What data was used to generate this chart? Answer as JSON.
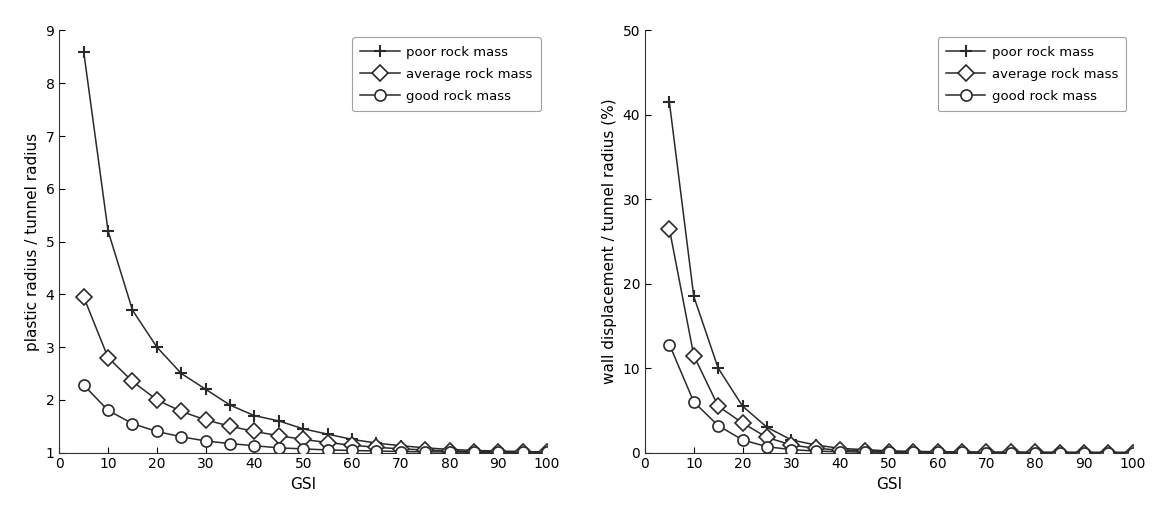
{
  "left_plot": {
    "xlabel": "GSI",
    "ylabel": "plastic radius / tunnel radius",
    "xlim": [
      0,
      100
    ],
    "ylim": [
      1,
      9
    ],
    "yticks": [
      1,
      2,
      3,
      4,
      5,
      6,
      7,
      8,
      9
    ],
    "xticks": [
      0,
      10,
      20,
      30,
      40,
      50,
      60,
      70,
      80,
      90,
      100
    ],
    "poor": {
      "gsi": [
        5,
        10,
        15,
        20,
        25,
        30,
        35,
        40,
        45,
        50,
        55,
        60,
        65,
        70,
        75,
        80,
        85,
        90,
        95,
        100
      ],
      "values": [
        8.6,
        5.2,
        3.7,
        3.0,
        2.5,
        2.2,
        1.9,
        1.7,
        1.6,
        1.45,
        1.35,
        1.25,
        1.18,
        1.13,
        1.09,
        1.06,
        1.04,
        1.03,
        1.02,
        1.01
      ],
      "label": "poor rock mass",
      "marker": "P"
    },
    "average": {
      "gsi": [
        5,
        10,
        15,
        20,
        25,
        30,
        35,
        40,
        45,
        50,
        55,
        60,
        65,
        70,
        75,
        80,
        85,
        90,
        95,
        100
      ],
      "values": [
        3.95,
        2.8,
        2.35,
        2.0,
        1.78,
        1.62,
        1.5,
        1.4,
        1.32,
        1.25,
        1.19,
        1.14,
        1.1,
        1.07,
        1.05,
        1.03,
        1.02,
        1.015,
        1.01,
        1.005
      ],
      "label": "average rock mass",
      "marker": "D"
    },
    "good": {
      "gsi": [
        5,
        10,
        15,
        20,
        25,
        30,
        35,
        40,
        45,
        50,
        55,
        60,
        65,
        70,
        75,
        80,
        85,
        90,
        95,
        100
      ],
      "values": [
        2.28,
        1.8,
        1.55,
        1.4,
        1.3,
        1.22,
        1.17,
        1.13,
        1.09,
        1.07,
        1.05,
        1.04,
        1.03,
        1.02,
        1.015,
        1.01,
        1.008,
        1.005,
        1.003,
        1.002
      ],
      "label": "good rock mass",
      "marker": "o"
    },
    "hline_y": 1.0
  },
  "right_plot": {
    "xlabel": "GSI",
    "ylabel": "wall displacement / tunnel radius (%)",
    "xlim": [
      0,
      100
    ],
    "ylim": [
      0,
      50
    ],
    "yticks": [
      0,
      10,
      20,
      30,
      40,
      50
    ],
    "xticks": [
      0,
      10,
      20,
      30,
      40,
      50,
      60,
      70,
      80,
      90,
      100
    ],
    "poor": {
      "gsi": [
        5,
        10,
        15,
        20,
        25,
        30,
        35,
        40,
        45,
        50,
        55,
        60,
        65,
        70,
        75,
        80,
        85,
        90,
        95,
        100
      ],
      "values": [
        41.5,
        18.5,
        10.0,
        5.5,
        3.0,
        1.5,
        0.9,
        0.5,
        0.35,
        0.2,
        0.15,
        0.1,
        0.08,
        0.05,
        0.04,
        0.03,
        0.02,
        0.01,
        0.01,
        0.005
      ],
      "label": "poor rock mass",
      "marker": "P"
    },
    "average": {
      "gsi": [
        5,
        10,
        15,
        20,
        25,
        30,
        35,
        40,
        45,
        50,
        55,
        60,
        65,
        70,
        75,
        80,
        85,
        90,
        95,
        100
      ],
      "values": [
        26.5,
        11.5,
        5.5,
        3.5,
        1.8,
        0.9,
        0.5,
        0.3,
        0.2,
        0.12,
        0.08,
        0.05,
        0.03,
        0.02,
        0.015,
        0.01,
        0.007,
        0.005,
        0.003,
        0.002
      ],
      "label": "average rock mass",
      "marker": "D"
    },
    "good": {
      "gsi": [
        5,
        10,
        15,
        20,
        25,
        30,
        35,
        40,
        45,
        50,
        55,
        60,
        65,
        70,
        75,
        80,
        85,
        90,
        95,
        100
      ],
      "values": [
        12.8,
        6.0,
        3.2,
        1.5,
        0.7,
        0.35,
        0.18,
        0.1,
        0.06,
        0.04,
        0.025,
        0.015,
        0.01,
        0.006,
        0.004,
        0.002,
        0.001,
        0.001,
        0.001,
        0.001
      ],
      "label": "good rock mass",
      "marker": "o"
    },
    "hline_y": 0.0
  },
  "line_color": "#2a2a2a",
  "line_color_avg": "#1a1a1a",
  "marker_size_plus": 9,
  "marker_size_diamond": 8,
  "marker_size_circle": 8,
  "legend_fontsize": 9.5,
  "axis_label_fontsize": 11,
  "tick_fontsize": 10,
  "figure_width": 11.71,
  "figure_height": 5.17,
  "dpi": 100
}
